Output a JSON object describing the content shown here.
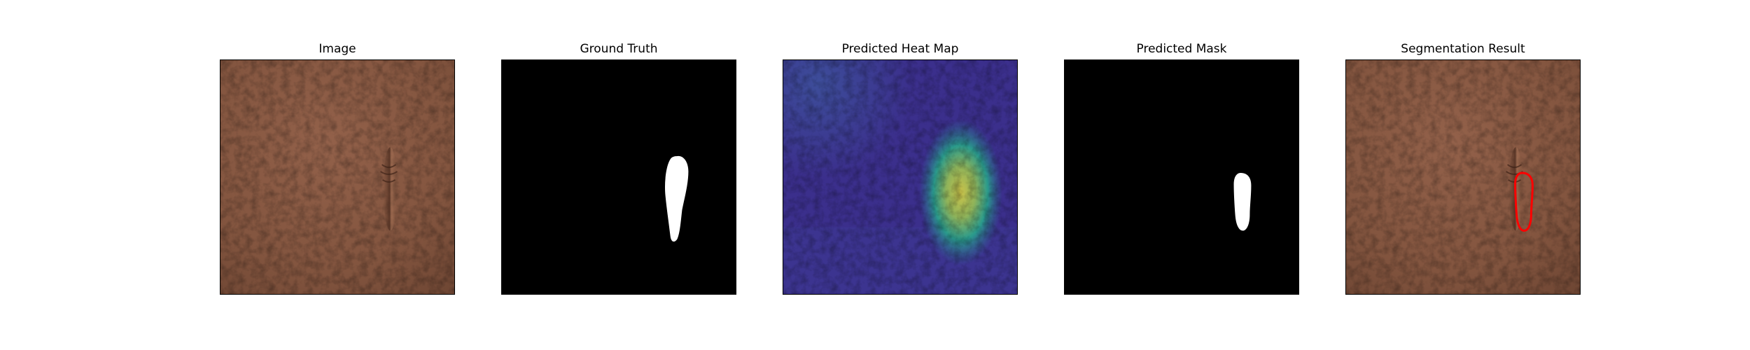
{
  "figure": {
    "panels": [
      {
        "id": "image",
        "title": "Image"
      },
      {
        "id": "ground-truth",
        "title": "Ground Truth"
      },
      {
        "id": "heat-map",
        "title": "Predicted Heat Map"
      },
      {
        "id": "predicted-mask",
        "title": "Predicted Mask"
      },
      {
        "id": "segmentation",
        "title": "Segmentation Result"
      }
    ]
  },
  "colors": {
    "leather_base": "#8a5a40",
    "leather_dark": "#6b4331",
    "mask_background": "#000000",
    "mask_foreground": "#ffffff",
    "heatmap_low": "#3b2f8c",
    "heatmap_mid": "#2a9a8c",
    "heatmap_high": "#c9c24a",
    "contour": "#ff0000"
  }
}
